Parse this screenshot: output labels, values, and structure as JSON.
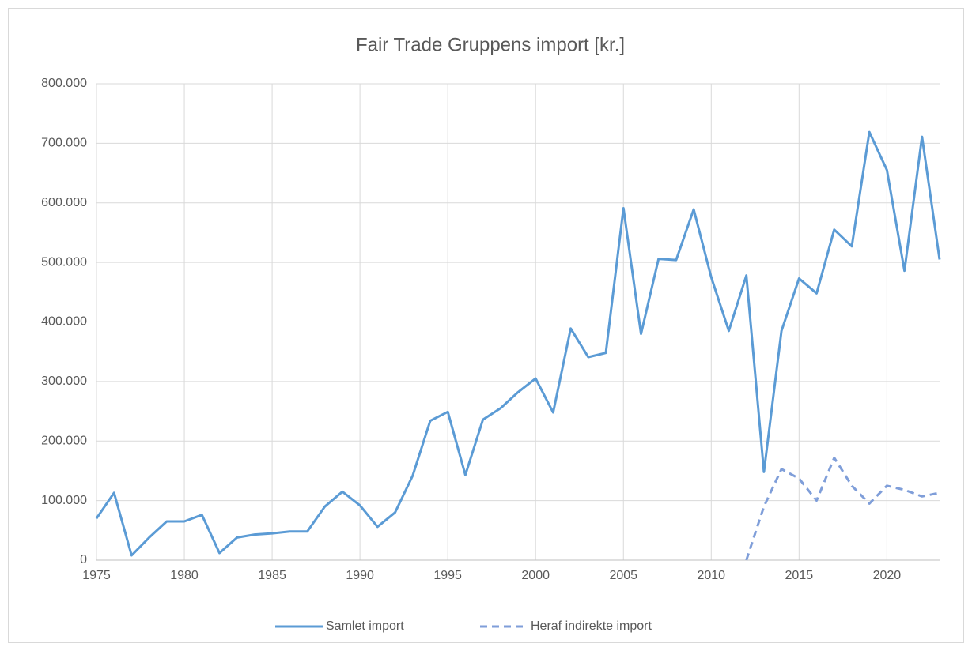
{
  "chart_data": {
    "type": "line",
    "title": "Fair Trade Gruppens import [kr.]",
    "x": [
      1975,
      1976,
      1977,
      1978,
      1979,
      1980,
      1981,
      1982,
      1983,
      1984,
      1985,
      1986,
      1987,
      1988,
      1989,
      1990,
      1991,
      1992,
      1993,
      1994,
      1995,
      1996,
      1997,
      1998,
      1999,
      2000,
      2001,
      2002,
      2003,
      2004,
      2005,
      2006,
      2007,
      2008,
      2009,
      2010,
      2011,
      2012,
      2013,
      2014,
      2015,
      2016,
      2017,
      2018,
      2019,
      2020,
      2021,
      2022,
      2023
    ],
    "series": [
      {
        "name": "Samlet import",
        "color": "#5b9bd5",
        "style": "solid",
        "values": [
          70000,
          113000,
          8000,
          38000,
          65000,
          65000,
          76000,
          12000,
          38000,
          43000,
          45000,
          48000,
          48000,
          90000,
          115000,
          92000,
          56000,
          80000,
          142000,
          234000,
          249000,
          143000,
          236000,
          255000,
          282000,
          305000,
          248000,
          389000,
          341000,
          348000,
          591000,
          380000,
          506000,
          504000,
          589000,
          475000,
          385000,
          478000,
          148000,
          385000,
          473000,
          448000,
          555000,
          527000,
          719000,
          655000,
          486000,
          711000,
          505000
        ]
      },
      {
        "name": "Heraf indirekte import",
        "color": "#7f9ed9",
        "style": "dashed",
        "values": [
          null,
          null,
          null,
          null,
          null,
          null,
          null,
          null,
          null,
          null,
          null,
          null,
          null,
          null,
          null,
          null,
          null,
          null,
          null,
          null,
          null,
          null,
          null,
          null,
          null,
          null,
          null,
          null,
          null,
          null,
          null,
          null,
          null,
          null,
          null,
          null,
          null,
          0,
          90000,
          153000,
          137000,
          100000,
          172000,
          125000,
          95000,
          125000,
          118000,
          107000,
          113000
        ]
      }
    ],
    "xlim": [
      1975,
      2023
    ],
    "xticks": [
      1975,
      1980,
      1985,
      1990,
      1995,
      2000,
      2005,
      2010,
      2015,
      2020
    ],
    "ylim": [
      0,
      800000
    ],
    "yticks": [
      0,
      {
        "value": 100000,
        "label": "100.000"
      },
      {
        "value": 200000,
        "label": "200.000"
      },
      {
        "value": 300000,
        "label": "300.000"
      },
      {
        "value": 400000,
        "label": "400.000"
      },
      {
        "value": 500000,
        "label": "500.000"
      },
      {
        "value": 600000,
        "label": "600.000"
      },
      {
        "value": 700000,
        "label": "700.000"
      },
      {
        "value": 800000,
        "label": "800.000"
      }
    ],
    "grid": true,
    "legend": "bottom"
  }
}
